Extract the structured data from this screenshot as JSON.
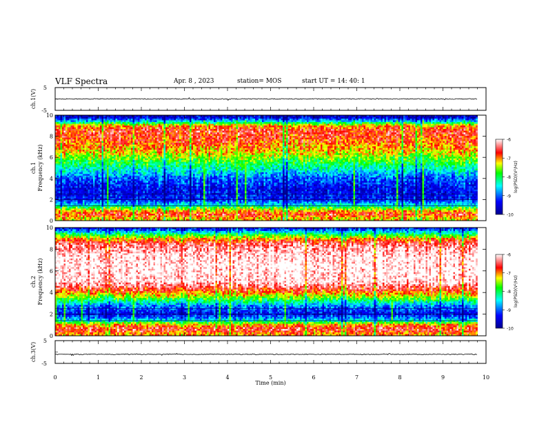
{
  "header": {
    "title": "VLF Spectra",
    "date": "Apr. 8 , 2023",
    "station": "station= MOS",
    "start_ut": "start UT =  14: 40: 1"
  },
  "colors": {
    "jet": [
      "#00008f",
      "#0000ff",
      "#00ffff",
      "#00ff00",
      "#ffff00",
      "#ff0000",
      "#ffffff"
    ]
  },
  "chart_data": [
    {
      "id": "ch1v",
      "type": "line",
      "ylabel": "ch.1(V)",
      "ylim": [
        -5,
        5
      ],
      "yticks": [
        "5",
        "-5"
      ],
      "x_range_min": [
        0,
        9.8
      ],
      "value_approx": 0
    },
    {
      "id": "ch1_spec",
      "type": "heatmap",
      "ylabel": "ch.1",
      "ylabel2": "Frequency (kHz)",
      "ylim": [
        0,
        10
      ],
      "yticks": [
        "0",
        "2",
        "4",
        "6",
        "8",
        "10"
      ],
      "colorbar": {
        "label": "log(PSD)(V²/Hz)",
        "ticks": [
          "-6",
          "-7",
          "-8",
          "-9",
          "-10"
        ],
        "range": [
          -10,
          -6
        ]
      },
      "profile_khz_level": [
        [
          0.2,
          -7.2
        ],
        [
          0.6,
          -6.6
        ],
        [
          1.0,
          -7.2
        ],
        [
          1.5,
          -8.5
        ],
        [
          2.0,
          -9.3
        ],
        [
          3.0,
          -9.4
        ],
        [
          4.0,
          -9.0
        ],
        [
          4.8,
          -8.4
        ],
        [
          5.5,
          -7.9
        ],
        [
          6.5,
          -7.2
        ],
        [
          7.5,
          -6.8
        ],
        [
          8.5,
          -6.6
        ],
        [
          9.0,
          -7.0
        ],
        [
          9.4,
          -8.5
        ],
        [
          9.8,
          -9.6
        ]
      ]
    },
    {
      "id": "ch2_spec",
      "type": "heatmap",
      "ylabel": "ch.2",
      "ylabel2": "Frequency (kHz)",
      "ylim": [
        0,
        10
      ],
      "yticks": [
        "0",
        "2",
        "4",
        "6",
        "8",
        "10"
      ],
      "colorbar": {
        "label": "log(PSD)(V²/Hz)",
        "ticks": [
          "-6",
          "-7",
          "-8",
          "-9",
          "-10"
        ],
        "range": [
          -10,
          -6
        ]
      },
      "profile_khz_level": [
        [
          0.2,
          -7.0
        ],
        [
          0.6,
          -6.5
        ],
        [
          1.0,
          -7.0
        ],
        [
          1.5,
          -8.6
        ],
        [
          2.0,
          -9.4
        ],
        [
          2.8,
          -8.8
        ],
        [
          3.5,
          -7.6
        ],
        [
          4.2,
          -6.7
        ],
        [
          5.0,
          -6.0
        ],
        [
          6.5,
          -5.9
        ],
        [
          7.5,
          -6.0
        ],
        [
          8.5,
          -6.4
        ],
        [
          9.0,
          -7.1
        ],
        [
          9.5,
          -8.3
        ],
        [
          9.9,
          -9.3
        ]
      ]
    },
    {
      "id": "ch3v",
      "type": "line",
      "ylabel": "ch.3(V)",
      "ylim": [
        -5,
        5
      ],
      "yticks": [
        "5",
        "-5"
      ],
      "x_range_min": [
        0,
        9.8
      ],
      "value_approx": -1
    }
  ],
  "x_axis": {
    "label": "Time (min)",
    "range": [
      0,
      10
    ],
    "ticks": [
      "0",
      "1",
      "2",
      "3",
      "4",
      "5",
      "6",
      "7",
      "8",
      "9",
      "10"
    ]
  }
}
